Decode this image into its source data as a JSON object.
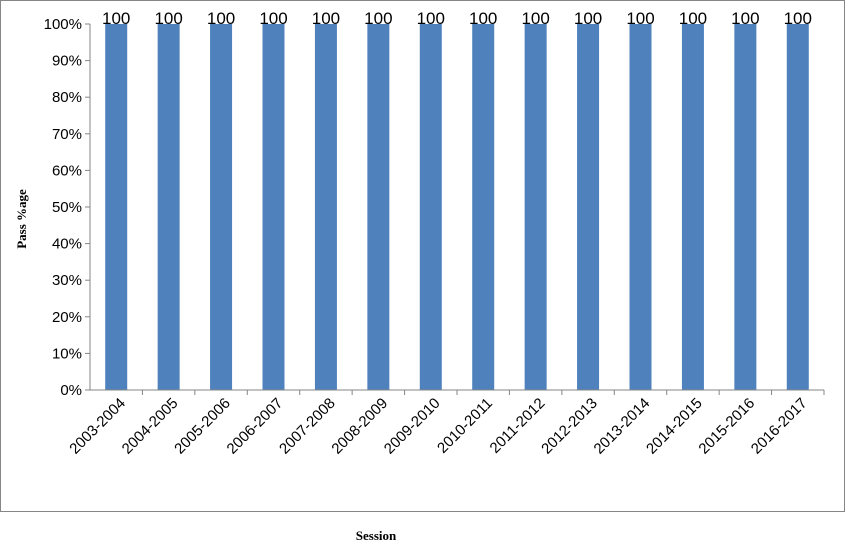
{
  "chart_data": {
    "type": "bar",
    "title": "",
    "xlabel": "Session",
    "ylabel": "Pass %age",
    "categories": [
      "2003-2004",
      "2004-2005",
      "2005-2006",
      "2006-2007",
      "2007-2008",
      "2008-2009",
      "2009-2010",
      "2010-2011",
      "2011-2012",
      "2012-2013",
      "2013-2014",
      "2014-2015",
      "2015-2016",
      "2016-2017"
    ],
    "values": [
      100,
      100,
      100,
      100,
      100,
      100,
      100,
      100,
      100,
      100,
      100,
      100,
      100,
      100
    ],
    "data_labels": [
      "100",
      "100",
      "100",
      "100",
      "100",
      "100",
      "100",
      "100",
      "100",
      "100",
      "100",
      "100",
      "100",
      "100"
    ],
    "ylim": [
      0,
      100
    ],
    "yticks": [
      0,
      10,
      20,
      30,
      40,
      50,
      60,
      70,
      80,
      90,
      100
    ],
    "ytick_labels": [
      "0%",
      "10%",
      "20%",
      "30%",
      "40%",
      "50%",
      "60%",
      "70%",
      "80%",
      "90%",
      "100%"
    ],
    "bar_color": "#4F81BD",
    "grid": false,
    "legend": "none"
  }
}
